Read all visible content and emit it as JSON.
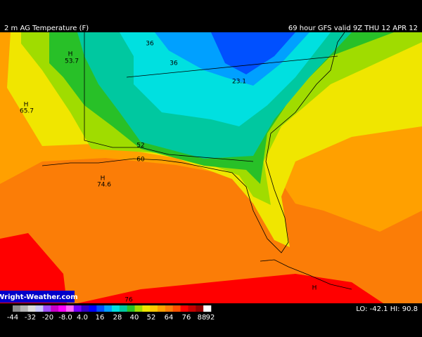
{
  "header": {
    "title": "2 m AG Temperature (F)",
    "run": "69 hour GFS valid 9Z THU 12 APR 12"
  },
  "map_labels": [
    "36",
    "36",
    "H",
    "53.7",
    "23.1",
    "H",
    "65.7",
    "52",
    "60",
    "H",
    "74.6",
    "76",
    "H"
  ],
  "logo": "Wright-Weather.com",
  "colorbar": {
    "colors": [
      "#8c8c8c",
      "#b4b4b4",
      "#dcdcdc",
      "#c8c8ff",
      "#a050ff",
      "#c800c8",
      "#ff00ff",
      "#ff64ff",
      "#7800ff",
      "#3200c8",
      "#0000ff",
      "#0050ff",
      "#00a0ff",
      "#00e0e0",
      "#00c8a0",
      "#28c028",
      "#a0dc00",
      "#f0e600",
      "#ffc800",
      "#ffa000",
      "#fb7d07",
      "#ff5000",
      "#ff0000",
      "#c80000",
      "#960000",
      "#ffffff"
    ],
    "labels": [
      "-44",
      "-32",
      "-20",
      "-8.0",
      "4.0",
      "16",
      "28",
      "40",
      "52",
      "64",
      "76",
      "88",
      "92"
    ]
  },
  "extremes": "LO: -42.1  HI: 90.8"
}
